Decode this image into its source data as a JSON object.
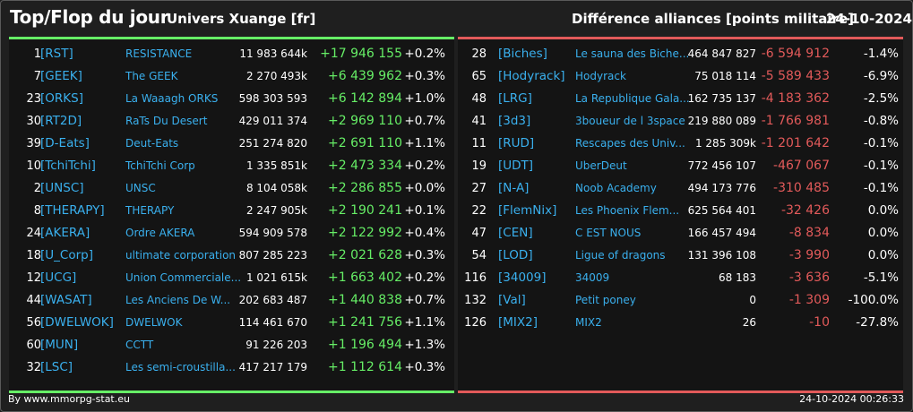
{
  "header": {
    "title": "Top/Flop du jour",
    "universe": "Univers Xuange [fr]",
    "subtitle": "Différence alliances [points militaire]",
    "date": "24-10-2024"
  },
  "colors": {
    "gain": "#66ee66",
    "loss": "#e25a5a",
    "link": "#3ab0ee",
    "background": "#1f1f1f"
  },
  "top": [
    {
      "rank": "1",
      "tag": "[RST]",
      "name": "RESISTANCE",
      "total": "11 983 644k",
      "delta": "+17 946 155",
      "pct": "+0.2%"
    },
    {
      "rank": "7",
      "tag": "[GEEK]",
      "name": "The GEEK",
      "total": "2 270 493k",
      "delta": "+6 439 962",
      "pct": "+0.3%"
    },
    {
      "rank": "23",
      "tag": "[ORKS]",
      "name": "La Waaagh ORKS",
      "total": "598 303 593",
      "delta": "+6 142 894",
      "pct": "+1.0%"
    },
    {
      "rank": "30",
      "tag": "[RT2D]",
      "name": "RaTs Du Desert",
      "total": "429 011 374",
      "delta": "+2 969 110",
      "pct": "+0.7%"
    },
    {
      "rank": "39",
      "tag": "[D-Eats]",
      "name": "Deut-Eats",
      "total": "251 274 820",
      "delta": "+2 691 110",
      "pct": "+1.1%"
    },
    {
      "rank": "10",
      "tag": "[TchiTchi]",
      "name": "TchiTchi Corp",
      "total": "1 335 851k",
      "delta": "+2 473 334",
      "pct": "+0.2%"
    },
    {
      "rank": "2",
      "tag": "[UNSC]",
      "name": "UNSC",
      "total": "8 104 058k",
      "delta": "+2 286 855",
      "pct": "+0.0%"
    },
    {
      "rank": "8",
      "tag": "[THERAPY]",
      "name": "THERAPY",
      "total": "2 247 905k",
      "delta": "+2 190 241",
      "pct": "+0.1%"
    },
    {
      "rank": "24",
      "tag": "[AKERA]",
      "name": "Ordre AKERA",
      "total": "594 909 578",
      "delta": "+2 122 992",
      "pct": "+0.4%"
    },
    {
      "rank": "18",
      "tag": "[U_Corp]",
      "name": "ultimate corporation",
      "total": "807 285 223",
      "delta": "+2 021 628",
      "pct": "+0.3%"
    },
    {
      "rank": "12",
      "tag": "[UCG]",
      "name": "Union Commerciale...",
      "total": "1 021 615k",
      "delta": "+1 663 402",
      "pct": "+0.2%"
    },
    {
      "rank": "44",
      "tag": "[WASAT]",
      "name": "Les Anciens De W...",
      "total": "202 683 487",
      "delta": "+1 440 838",
      "pct": "+0.7%"
    },
    {
      "rank": "56",
      "tag": "[DWELWOK]",
      "name": "DWELWOK",
      "total": "114 461 670",
      "delta": "+1 241 756",
      "pct": "+1.1%"
    },
    {
      "rank": "60",
      "tag": "[MUN]",
      "name": "CCTT",
      "total": "91 226 203",
      "delta": "+1 196 494",
      "pct": "+1.3%"
    },
    {
      "rank": "32",
      "tag": "[LSC]",
      "name": "Les semi-croustilla...",
      "total": "417 217 179",
      "delta": "+1 112 614",
      "pct": "+0.3%"
    }
  ],
  "flop": [
    {
      "rank": "28",
      "tag": "[Biches]",
      "name": "Le sauna des Biche...",
      "total": "464 847 827",
      "delta": "-6 594 912",
      "pct": "-1.4%"
    },
    {
      "rank": "65",
      "tag": "[Hodyrack]",
      "name": "Hodyrack",
      "total": "75 018 114",
      "delta": "-5 589 433",
      "pct": "-6.9%"
    },
    {
      "rank": "48",
      "tag": "[LRG]",
      "name": "La Republique Gala...",
      "total": "162 735 137",
      "delta": "-4 183 362",
      "pct": "-2.5%"
    },
    {
      "rank": "41",
      "tag": "[3d3]",
      "name": "3boueur de l 3space",
      "total": "219 880 089",
      "delta": "-1 766 981",
      "pct": "-0.8%"
    },
    {
      "rank": "11",
      "tag": "[RUD]",
      "name": "Rescapes des Univ...",
      "total": "1 285 309k",
      "delta": "-1 201 642",
      "pct": "-0.1%"
    },
    {
      "rank": "19",
      "tag": "[UDT]",
      "name": "UberDeut",
      "total": "772 456 107",
      "delta": "-467 067",
      "pct": "-0.1%"
    },
    {
      "rank": "27",
      "tag": "[N-A]",
      "name": "Noob Academy",
      "total": "494 173 776",
      "delta": "-310 485",
      "pct": "-0.1%"
    },
    {
      "rank": "22",
      "tag": "[FlemNix]",
      "name": "Les Phoenix Flem...",
      "total": "625 564 401",
      "delta": "-32 426",
      "pct": "0.0%"
    },
    {
      "rank": "47",
      "tag": "[CEN]",
      "name": "C EST NOUS",
      "total": "166 457 494",
      "delta": "-8 834",
      "pct": "0.0%"
    },
    {
      "rank": "54",
      "tag": "[LOD]",
      "name": "Ligue of dragons",
      "total": "131 396 108",
      "delta": "-3 990",
      "pct": "0.0%"
    },
    {
      "rank": "116",
      "tag": "[34009]",
      "name": "34009",
      "total": "68 183",
      "delta": "-3 636",
      "pct": "-5.1%"
    },
    {
      "rank": "132",
      "tag": "[Val]",
      "name": "Petit poney",
      "total": "0",
      "delta": "-1 309",
      "pct": "-100.0%"
    },
    {
      "rank": "126",
      "tag": "[MIX2]",
      "name": "MIX2",
      "total": "26",
      "delta": "-10",
      "pct": "-27.8%"
    }
  ],
  "footer": {
    "credit": "By www.mmorpg-stat.eu",
    "timestamp": "24-10-2024 00:26:33"
  }
}
